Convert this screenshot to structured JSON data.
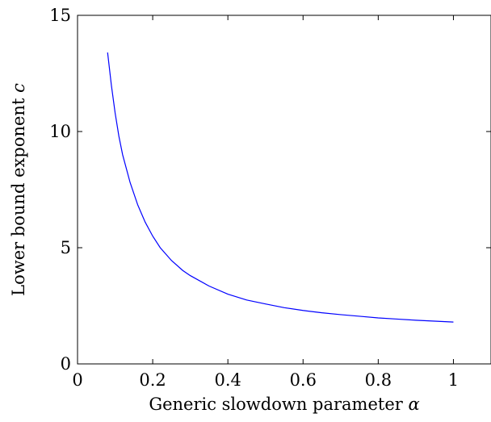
{
  "chart_data": {
    "type": "line",
    "xlabel": "Generic slowdown parameter",
    "xlabel_symbol": "α",
    "ylabel": "Lower bound exponent",
    "ylabel_symbol": "c",
    "xlim": [
      0,
      1.1
    ],
    "ylim": [
      0,
      15
    ],
    "xticks": [
      0,
      0.2,
      0.4,
      0.6,
      0.8,
      1
    ],
    "xtick_labels": [
      "0",
      "0.2",
      "0.4",
      "0.6",
      "0.8",
      "1"
    ],
    "yticks": [
      0,
      5,
      10,
      15
    ],
    "ytick_labels": [
      "0",
      "5",
      "10",
      "15"
    ],
    "grid": false,
    "series": [
      {
        "color": "#0000ff",
        "x": [
          0.08,
          0.09,
          0.1,
          0.11,
          0.12,
          0.14,
          0.16,
          0.18,
          0.2,
          0.22,
          0.25,
          0.28,
          0.3,
          0.35,
          0.4,
          0.45,
          0.5,
          0.55,
          0.6,
          0.65,
          0.7,
          0.75,
          0.8,
          0.85,
          0.9,
          0.95,
          1.0
        ],
        "y": [
          13.4,
          12.0,
          10.8,
          9.8,
          9.0,
          7.8,
          6.85,
          6.1,
          5.5,
          5.0,
          4.45,
          4.02,
          3.8,
          3.35,
          3.0,
          2.75,
          2.58,
          2.42,
          2.3,
          2.2,
          2.12,
          2.05,
          1.98,
          1.93,
          1.88,
          1.84,
          1.8
        ]
      }
    ]
  }
}
